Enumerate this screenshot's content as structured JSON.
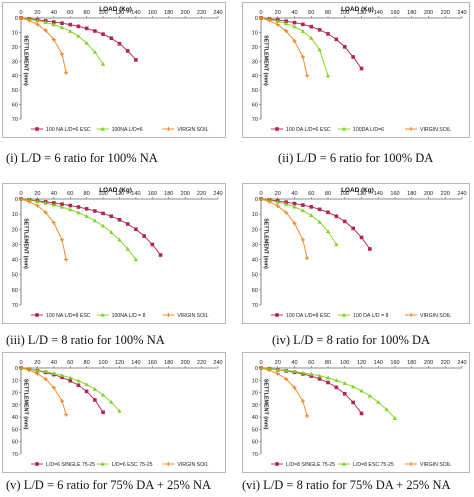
{
  "chart_data": [
    {
      "type": "scatter",
      "caption": "(i) L/D = 6 ratio for 100% NA",
      "xlabel": "LOAD (Kg)",
      "ylabel": "SETTLEMENT (mm)",
      "xlim": [
        0,
        240
      ],
      "ylim": [
        0,
        70
      ],
      "xticks": [
        "0",
        "20",
        "40",
        "60",
        "80",
        "100",
        "120",
        "140",
        "160",
        "180",
        "200",
        "220",
        "240"
      ],
      "yticks": [
        "0",
        "10",
        "20",
        "30",
        "40",
        "50",
        "60",
        "70"
      ],
      "series": [
        {
          "name": "100 NA L/D=6 ESC",
          "color": "#b5234f",
          "marker": "square",
          "x": [
            0,
            10,
            20,
            30,
            40,
            50,
            60,
            70,
            80,
            90,
            100,
            110,
            120,
            130,
            140
          ],
          "y": [
            0,
            0.6,
            1.3,
            2.0,
            2.8,
            3.6,
            4.6,
            5.8,
            7.2,
            9.0,
            11.2,
            14.0,
            17.8,
            22.8,
            29.0
          ]
        },
        {
          "name": "100NA L/D=6",
          "color": "#7ed21a",
          "marker": "triangle",
          "x": [
            0,
            10,
            20,
            30,
            40,
            50,
            60,
            70,
            80,
            90,
            100
          ],
          "y": [
            0,
            0.8,
            1.8,
            3.0,
            4.6,
            6.6,
            9.2,
            12.6,
            17.4,
            23.6,
            32.0
          ]
        },
        {
          "name": "VIRGIN SOIL",
          "color": "#f0821e",
          "marker": "plus",
          "x": [
            0,
            10,
            20,
            30,
            40,
            50,
            55
          ],
          "y": [
            0,
            1.8,
            4.4,
            8.6,
            15.0,
            25.0,
            38.0
          ]
        }
      ]
    },
    {
      "type": "scatter",
      "caption": "(ii) L/D = 6 ratio for 100% DA",
      "xlabel": "LOAD (Kg)",
      "ylabel": "SETTLEMENT (mm)",
      "xlim": [
        0,
        240
      ],
      "ylim": [
        0,
        70
      ],
      "xticks": [
        "0",
        "20",
        "40",
        "60",
        "80",
        "100",
        "120",
        "140",
        "160",
        "180",
        "200",
        "220",
        "240"
      ],
      "yticks": [
        "0",
        "10",
        "20",
        "30",
        "40",
        "50",
        "60",
        "70"
      ],
      "series": [
        {
          "name": "100 DA L/D=6 ESC",
          "color": "#b5234f",
          "marker": "square",
          "x": [
            0,
            10,
            20,
            30,
            40,
            50,
            60,
            70,
            80,
            90,
            100,
            110,
            120
          ],
          "y": [
            0,
            0.7,
            1.4,
            2.2,
            3.2,
            4.4,
            6.0,
            8.2,
            11.0,
            14.8,
            20.0,
            27.0,
            35.0
          ]
        },
        {
          "name": "100DA L/D=6",
          "color": "#7ed21a",
          "marker": "triangle",
          "x": [
            0,
            10,
            20,
            30,
            40,
            50,
            60,
            70,
            80
          ],
          "y": [
            0,
            1.0,
            2.2,
            3.8,
            6.0,
            9.2,
            14.0,
            22.0,
            40.0
          ]
        },
        {
          "name": "VIRGIN SOIL",
          "color": "#f0821e",
          "marker": "plus",
          "x": [
            0,
            10,
            20,
            30,
            40,
            50,
            55
          ],
          "y": [
            0,
            1.8,
            4.6,
            9.0,
            16.0,
            27.0,
            40.0
          ]
        }
      ]
    },
    {
      "type": "scatter",
      "caption": "(iii) L/D = 8 ratio for 100% NA",
      "xlabel": "LOAD (Kg)",
      "ylabel": "SETTLEMENT (mm)",
      "xlim": [
        0,
        240
      ],
      "ylim": [
        0,
        70
      ],
      "xticks": [
        "0",
        "20",
        "40",
        "60",
        "80",
        "100",
        "120",
        "140",
        "160",
        "180",
        "200",
        "220",
        "240"
      ],
      "yticks": [
        "0",
        "10",
        "20",
        "30",
        "40",
        "50",
        "60",
        "70"
      ],
      "series": [
        {
          "name": "100 NA L/D=8 ESC",
          "color": "#b5234f",
          "marker": "square",
          "x": [
            0,
            10,
            20,
            30,
            40,
            50,
            60,
            70,
            80,
            90,
            100,
            110,
            120,
            130,
            140,
            150,
            160,
            170
          ],
          "y": [
            0,
            0.6,
            1.2,
            1.9,
            2.6,
            3.4,
            4.3,
            5.3,
            6.5,
            7.9,
            9.5,
            11.4,
            13.7,
            16.5,
            20.0,
            24.5,
            30.0,
            37.0
          ]
        },
        {
          "name": "100NA L/D = 8",
          "color": "#7ed21a",
          "marker": "triangle",
          "x": [
            0,
            10,
            20,
            30,
            40,
            50,
            60,
            70,
            80,
            90,
            100,
            110,
            120,
            130,
            140
          ],
          "y": [
            0,
            0.8,
            1.7,
            2.7,
            3.9,
            5.3,
            7.0,
            9.0,
            11.4,
            14.3,
            17.8,
            22.0,
            27.0,
            33.0,
            40.0
          ]
        },
        {
          "name": "VIRGIN SOIL",
          "color": "#f0821e",
          "marker": "plus",
          "x": [
            0,
            10,
            20,
            30,
            40,
            50,
            55
          ],
          "y": [
            0,
            1.8,
            4.4,
            8.8,
            15.6,
            27.0,
            40.0
          ]
        }
      ]
    },
    {
      "type": "scatter",
      "caption": "(iv) L/D = 8 ratio for 100% DA",
      "xlabel": "LOAD (Kg)",
      "ylabel": "SETTLEMENT (mm)",
      "xlim": [
        0,
        240
      ],
      "ylim": [
        0,
        70
      ],
      "xticks": [
        "0",
        "20",
        "40",
        "60",
        "80",
        "100",
        "120",
        "140",
        "160",
        "180",
        "200",
        "220",
        "240"
      ],
      "yticks": [
        "0",
        "10",
        "20",
        "30",
        "40",
        "50",
        "60",
        "70"
      ],
      "series": [
        {
          "name": "100 DA L/D=8 ESC",
          "color": "#b5234f",
          "marker": "square",
          "x": [
            0,
            10,
            20,
            30,
            40,
            50,
            60,
            70,
            80,
            90,
            100,
            110,
            120,
            130
          ],
          "y": [
            0,
            0.6,
            1.3,
            2.1,
            3.0,
            4.0,
            5.2,
            6.8,
            8.8,
            11.4,
            14.8,
            19.4,
            25.4,
            33.0
          ]
        },
        {
          "name": "100 DA L/D = 8",
          "color": "#7ed21a",
          "marker": "triangle",
          "x": [
            0,
            10,
            20,
            30,
            40,
            50,
            60,
            70,
            80,
            90
          ],
          "y": [
            0,
            0.9,
            2.0,
            3.4,
            5.2,
            7.6,
            10.8,
            15.2,
            21.4,
            30.0
          ]
        },
        {
          "name": "VIRGIN SOIL",
          "color": "#f0821e",
          "marker": "plus",
          "x": [
            0,
            10,
            20,
            30,
            40,
            50,
            55
          ],
          "y": [
            0,
            1.8,
            4.6,
            9.0,
            16.0,
            27.0,
            39.0
          ]
        }
      ]
    },
    {
      "type": "scatter",
      "caption": "(v) L/D = 6 ratio for 75% DA + 25% NA",
      "xlabel": "",
      "ylabel": "SETTLEMENT (mm)",
      "xlim": [
        0,
        240
      ],
      "ylim": [
        0,
        70
      ],
      "xticks": [
        "0",
        "20",
        "40",
        "60",
        "80",
        "100",
        "120",
        "140",
        "160",
        "180",
        "200",
        "220",
        "240"
      ],
      "yticks": [
        "0",
        "10",
        "20",
        "30",
        "40",
        "50",
        "60",
        "70"
      ],
      "series": [
        {
          "name": "L/D=6 SINGLE 75-25",
          "color": "#b5234f",
          "marker": "square",
          "x": [
            0,
            10,
            20,
            30,
            40,
            50,
            60,
            70,
            80,
            90,
            100
          ],
          "y": [
            0,
            1.0,
            2.2,
            3.6,
            5.4,
            7.6,
            10.4,
            14.0,
            19.0,
            26.0,
            36.0
          ]
        },
        {
          "name": "L/D=6 ESC 75-25",
          "color": "#7ed21a",
          "marker": "triangle",
          "x": [
            0,
            10,
            20,
            30,
            40,
            50,
            60,
            70,
            80,
            90,
            100,
            110,
            120
          ],
          "y": [
            0,
            0.9,
            1.9,
            3.0,
            4.4,
            6.0,
            8.0,
            10.4,
            13.4,
            17.2,
            22.0,
            27.8,
            35.0
          ]
        },
        {
          "name": "VIRGIN SOIL",
          "color": "#f0821e",
          "marker": "plus",
          "x": [
            0,
            10,
            20,
            30,
            40,
            50,
            55
          ],
          "y": [
            0,
            1.8,
            4.6,
            9.0,
            16.0,
            27.0,
            38.0
          ]
        }
      ]
    },
    {
      "type": "scatter",
      "caption": "(vi) L/D = 8 ratio for 75% DA + 25% NA",
      "xlabel": "",
      "ylabel": "SETTLEMENT (mm)",
      "xlim": [
        0,
        240
      ],
      "ylim": [
        0,
        70
      ],
      "xticks": [
        "0",
        "20",
        "40",
        "60",
        "80",
        "100",
        "120",
        "140",
        "160",
        "180",
        "200",
        "220",
        "240"
      ],
      "yticks": [
        "0",
        "10",
        "20",
        "30",
        "40",
        "50",
        "60",
        "70"
      ],
      "series": [
        {
          "name": "L/D=8 SINGLE 75-25",
          "color": "#b5234f",
          "marker": "square",
          "x": [
            0,
            10,
            20,
            30,
            40,
            50,
            60,
            70,
            80,
            90,
            100,
            110,
            120
          ],
          "y": [
            0,
            0.7,
            1.5,
            2.4,
            3.5,
            4.8,
            6.6,
            8.8,
            11.8,
            15.8,
            21.0,
            28.0,
            37.0
          ]
        },
        {
          "name": "L/D=8 ESC 75-25",
          "color": "#7ed21a",
          "marker": "triangle",
          "x": [
            0,
            10,
            20,
            30,
            40,
            50,
            60,
            70,
            80,
            90,
            100,
            110,
            120,
            130,
            140,
            150,
            160
          ],
          "y": [
            0,
            0.6,
            1.3,
            2.0,
            2.9,
            3.9,
            5.0,
            6.4,
            8.0,
            10.0,
            12.4,
            15.2,
            18.6,
            22.8,
            27.8,
            33.8,
            41.0
          ]
        },
        {
          "name": "VIRGIN SOIL",
          "color": "#f0821e",
          "marker": "plus",
          "x": [
            0,
            10,
            20,
            30,
            40,
            50,
            55
          ],
          "y": [
            0,
            1.8,
            4.6,
            9.0,
            16.0,
            27.0,
            39.0
          ]
        }
      ]
    }
  ]
}
